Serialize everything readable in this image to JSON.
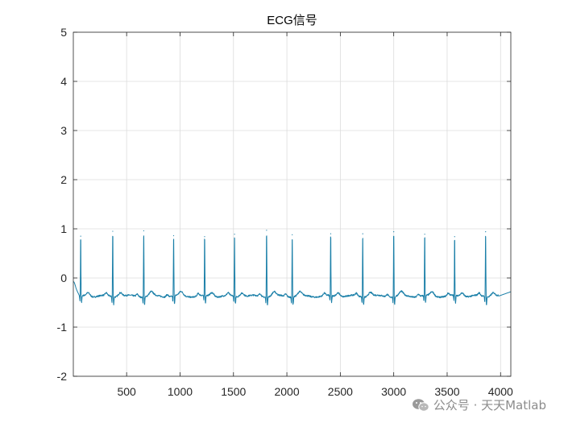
{
  "chart_data": {
    "type": "line",
    "title": "ECG信号",
    "xlabel": "",
    "ylabel": "",
    "xlim": [
      1,
      4096
    ],
    "ylim": [
      -2,
      5
    ],
    "xticks": [
      500,
      1000,
      1500,
      2000,
      2500,
      3000,
      3500,
      4000
    ],
    "xtick_labels": [
      "500",
      "1000",
      "1500",
      "2000",
      "2500",
      "3000",
      "3500",
      "4000"
    ],
    "yticks": [
      -2,
      -1,
      0,
      1,
      2,
      3,
      4,
      5
    ],
    "ytick_labels": [
      "-2",
      "-1",
      "0",
      "1",
      "2",
      "3",
      "4",
      "5"
    ],
    "grid": true,
    "line_color": "#1a7fa8",
    "r_peaks": [
      {
        "x": 70,
        "y": 0.85
      },
      {
        "x": 370,
        "y": 0.95
      },
      {
        "x": 660,
        "y": 0.96
      },
      {
        "x": 940,
        "y": 0.86
      },
      {
        "x": 1230,
        "y": 0.84
      },
      {
        "x": 1510,
        "y": 0.89
      },
      {
        "x": 1810,
        "y": 0.97
      },
      {
        "x": 2050,
        "y": 0.88
      },
      {
        "x": 2410,
        "y": 0.9
      },
      {
        "x": 2710,
        "y": 0.9
      },
      {
        "x": 3000,
        "y": 0.94
      },
      {
        "x": 3290,
        "y": 0.89
      },
      {
        "x": 3570,
        "y": 0.84
      },
      {
        "x": 3860,
        "y": 0.94
      }
    ],
    "baseline": {
      "start": -0.1,
      "level": -0.37,
      "end": -0.28
    }
  },
  "watermark": {
    "text": "公众号 · 天天Matlab",
    "icon": "wechat-icon"
  }
}
